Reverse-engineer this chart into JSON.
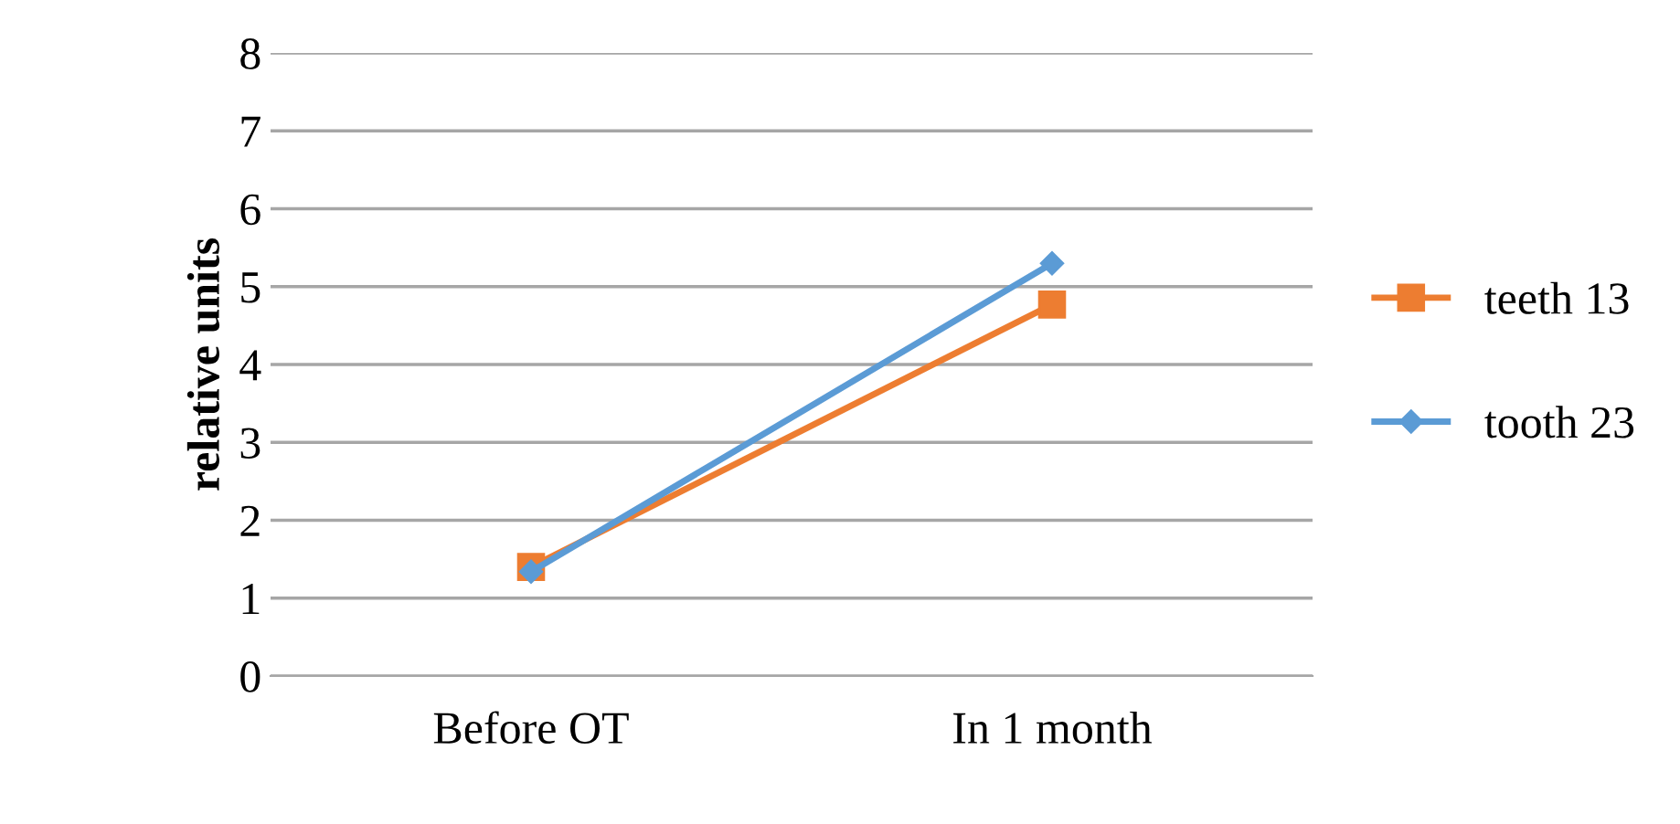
{
  "chart_data": {
    "type": "line",
    "ylabel": "relative units",
    "categories": [
      "Before OT",
      "In 1 month"
    ],
    "series": [
      {
        "name": "teeth 13",
        "color": "#ed7d31",
        "values": [
          1.4,
          4.77
        ],
        "marker": "square"
      },
      {
        "name": "tooth 23",
        "color": "#5b9bd5",
        "values": [
          1.34,
          5.3
        ],
        "marker": "diamond"
      }
    ],
    "ylim": [
      0,
      8
    ],
    "yticks": [
      0,
      1,
      2,
      3,
      4,
      5,
      6,
      7,
      8
    ],
    "grid": "y",
    "legend": "right",
    "line_style": "solid"
  }
}
